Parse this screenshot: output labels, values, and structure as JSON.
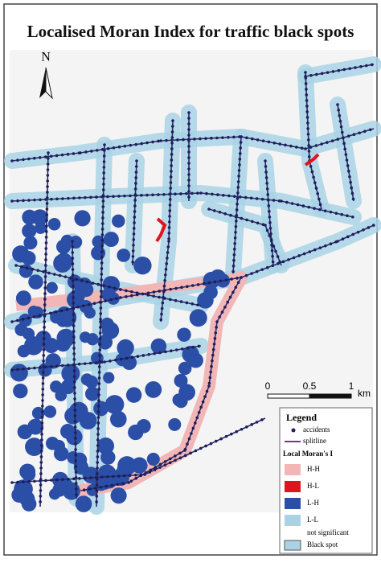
{
  "title": "Localised Moran Index for traffic black spots",
  "north": "N",
  "scale_bar": {
    "labels": [
      "0",
      "0.5",
      "1"
    ],
    "unit": "km"
  },
  "legend": {
    "title": "Legend",
    "accidents": "accidents",
    "splitline": "splitline",
    "group": "Local Moran's I",
    "items": [
      "H-H",
      "H-L",
      "L-H",
      "L-L",
      "not significant"
    ],
    "black_spot": "Black spot"
  }
}
